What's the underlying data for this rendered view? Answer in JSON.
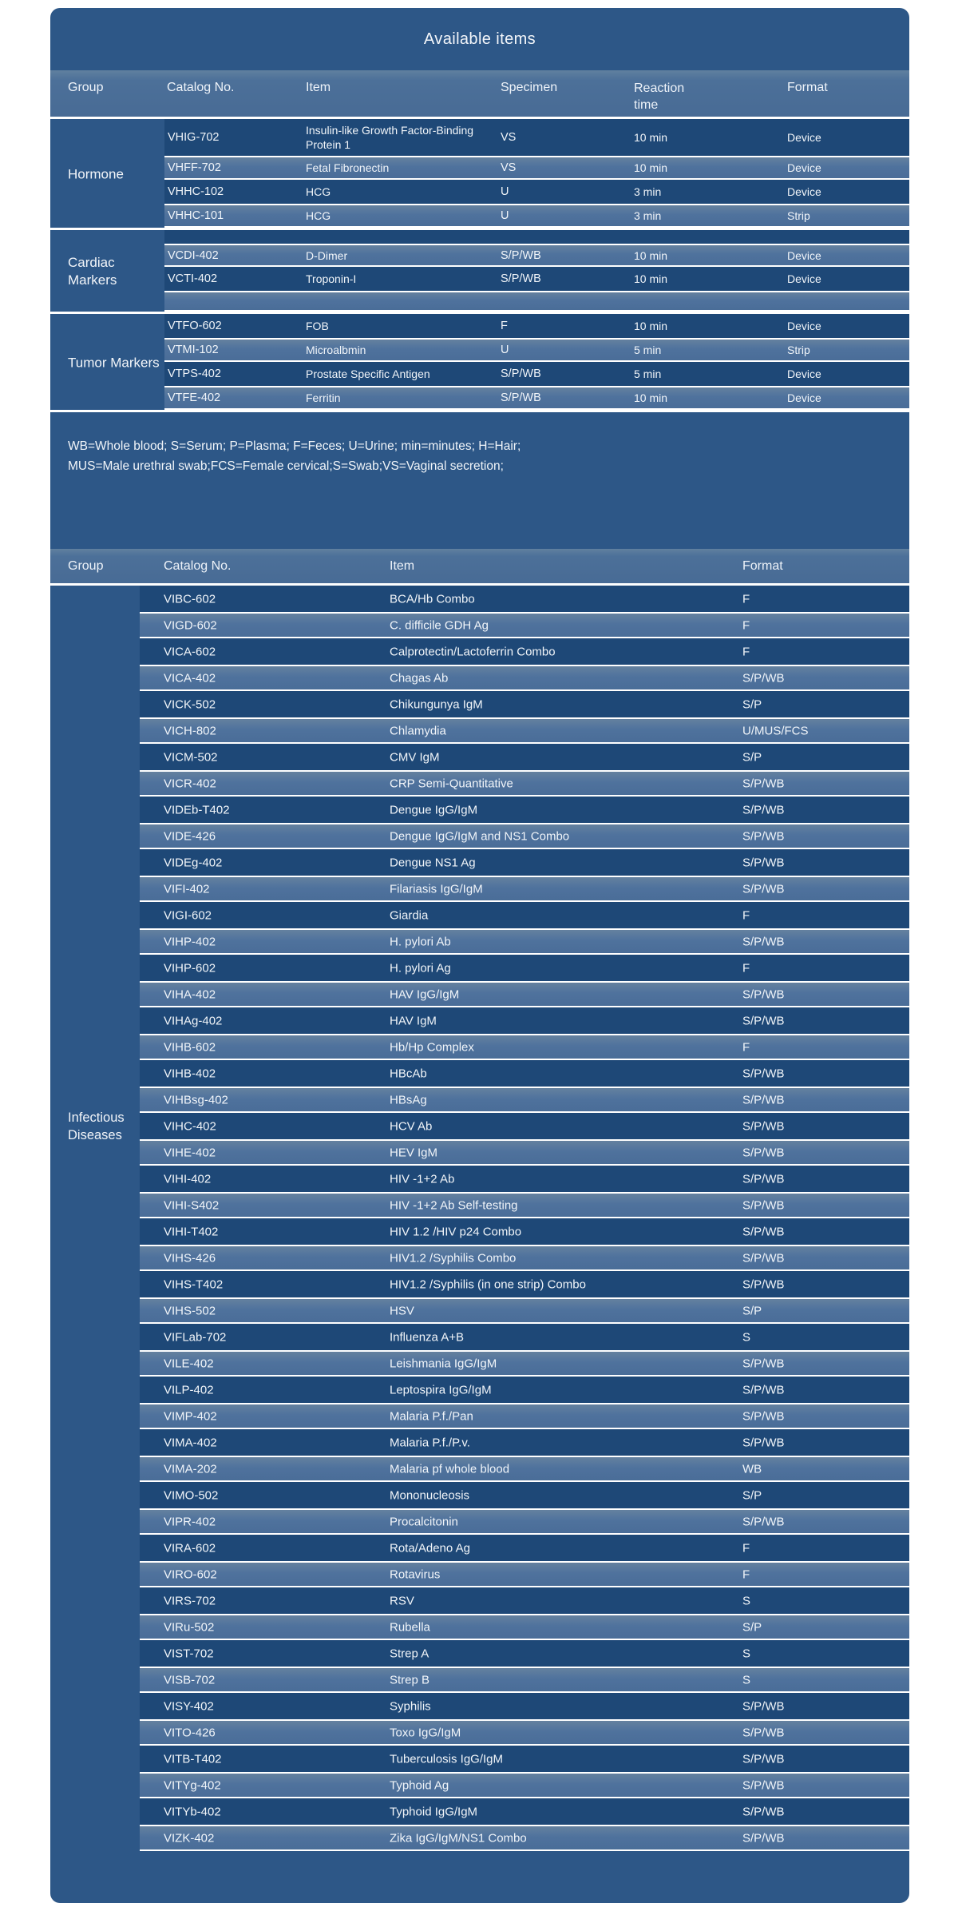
{
  "title": "Available items",
  "colors": {
    "panel_background": "#2d5787",
    "row_dark": "#1e4877",
    "row_light": "#4f729d",
    "header_band": "#4c7099",
    "separator": "#ffffff",
    "text": "#f1f5f9",
    "page_background": "#ffffff"
  },
  "table1": {
    "headers": [
      "Group",
      "Catalog No.",
      "Item",
      "Specimen",
      "Reaction time",
      "Format"
    ],
    "sections": [
      {
        "group": "Hormone",
        "rows": [
          [
            "VHIG-702",
            "Insulin-like Growth Factor-Binding Protein 1",
            "VS",
            "10 min",
            "Device"
          ],
          [
            "VHFF-702",
            "Fetal Fibronectin",
            "VS",
            "10 min",
            "Device"
          ],
          [
            "VHHC-102",
            "HCG",
            "U",
            "3 min",
            "Device"
          ],
          [
            "VHHC-101",
            "HCG",
            "U",
            "3 min",
            "Strip"
          ]
        ]
      },
      {
        "group": "Cardiac Markers",
        "rows": [
          [
            "",
            "",
            "",
            "",
            ""
          ],
          [
            "VCDI-402",
            "D-Dimer",
            "S/P/WB",
            "10 min",
            "Device"
          ],
          [
            "VCTI-402",
            "Troponin-I",
            "S/P/WB",
            "10 min",
            "Device"
          ],
          [
            "",
            "",
            "",
            "",
            ""
          ]
        ]
      },
      {
        "group": "Tumor Markers",
        "rows": [
          [
            "VTFO-602",
            "FOB",
            "F",
            "10 min",
            "Device"
          ],
          [
            "VTMI-102",
            "Microalbmin",
            "U",
            "5 min",
            "Strip"
          ],
          [
            "VTPS-402",
            "Prostate Specific Antigen",
            "S/P/WB",
            "5 min",
            "Device"
          ],
          [
            "VTFE-402",
            "Ferritin",
            "S/P/WB",
            "10 min",
            "Device"
          ]
        ]
      }
    ]
  },
  "legend": {
    "lines": [
      "WB=Whole blood; S=Serum; P=Plasma; F=Feces; U=Urine; min=minutes; H=Hair;",
      "MUS=Male urethral swab;FCS=Female cervical;S=Swab;VS=Vaginal secretion;"
    ]
  },
  "table2": {
    "headers": [
      "Group",
      "Catalog No.",
      "Item",
      "Format"
    ],
    "group": "Infectious Diseases",
    "rows": [
      [
        "VIBC-602",
        "BCA/Hb Combo",
        "F"
      ],
      [
        "VIGD-602",
        "C. difficile GDH Ag",
        "F"
      ],
      [
        "VICA-602",
        "Calprotectin/Lactoferrin Combo",
        "F"
      ],
      [
        "VICA-402",
        "Chagas Ab",
        "S/P/WB"
      ],
      [
        "VICK-502",
        "Chikungunya IgM",
        "S/P"
      ],
      [
        "VICH-802",
        "Chlamydia",
        "U/MUS/FCS"
      ],
      [
        "VICM-502",
        "CMV IgM",
        "S/P"
      ],
      [
        "VICR-402",
        "CRP Semi-Quantitative",
        "S/P/WB"
      ],
      [
        "VIDEb-T402",
        "Dengue IgG/IgM",
        "S/P/WB"
      ],
      [
        "VIDE-426",
        "Dengue IgG/IgM and NS1 Combo",
        "S/P/WB"
      ],
      [
        "VIDEg-402",
        "Dengue NS1 Ag",
        "S/P/WB"
      ],
      [
        "VIFI-402",
        "Filariasis IgG/IgM",
        "S/P/WB"
      ],
      [
        "VIGI-602",
        "Giardia",
        "F"
      ],
      [
        "VIHP-402",
        "H. pylori Ab",
        "S/P/WB"
      ],
      [
        "VIHP-602",
        "H. pylori Ag",
        "F"
      ],
      [
        "VIHA-402",
        "HAV IgG/IgM",
        "S/P/WB"
      ],
      [
        "VIHAg-402",
        "HAV IgM",
        "S/P/WB"
      ],
      [
        "VIHB-602",
        "Hb/Hp Complex",
        "F"
      ],
      [
        "VIHB-402",
        "HBcAb",
        "S/P/WB"
      ],
      [
        "VIHBsg-402",
        "HBsAg",
        "S/P/WB"
      ],
      [
        "VIHC-402",
        "HCV Ab",
        "S/P/WB"
      ],
      [
        "VIHE-402",
        "HEV IgM",
        "S/P/WB"
      ],
      [
        "VIHI-402",
        "HIV -1+2 Ab",
        "S/P/WB"
      ],
      [
        "VIHI-S402",
        "HIV -1+2 Ab Self-testing",
        "S/P/WB"
      ],
      [
        "VIHI-T402",
        "HIV 1.2 /HIV p24 Combo",
        "S/P/WB"
      ],
      [
        "VIHS-426",
        "HIV1.2 /Syphilis Combo",
        "S/P/WB"
      ],
      [
        "VIHS-T402",
        "HIV1.2 /Syphilis (in one strip) Combo",
        "S/P/WB"
      ],
      [
        "VIHS-502",
        "HSV",
        "S/P"
      ],
      [
        "VIFLab-702",
        "Influenza A+B",
        "S"
      ],
      [
        "VILE-402",
        "Leishmania IgG/IgM",
        "S/P/WB"
      ],
      [
        "VILP-402",
        "Leptospira IgG/IgM",
        "S/P/WB"
      ],
      [
        "VIMP-402",
        "Malaria P.f./Pan",
        "S/P/WB"
      ],
      [
        "VIMA-402",
        "Malaria P.f./P.v.",
        "S/P/WB"
      ],
      [
        "VIMA-202",
        "Malaria pf whole blood",
        "WB"
      ],
      [
        "VIMO-502",
        "Mononucleosis",
        "S/P"
      ],
      [
        "VIPR-402",
        "Procalcitonin",
        "S/P/WB"
      ],
      [
        "VIRA-602",
        "Rota/Adeno Ag",
        "F"
      ],
      [
        "VIRO-602",
        "Rotavirus",
        "F"
      ],
      [
        "VIRS-702",
        "RSV",
        "S"
      ],
      [
        "VIRu-502",
        "Rubella",
        "S/P"
      ],
      [
        "VIST-702",
        "Strep A",
        "S"
      ],
      [
        "VISB-702",
        "Strep B",
        "S"
      ],
      [
        "VISY-402",
        "Syphilis",
        "S/P/WB"
      ],
      [
        "VITO-426",
        "Toxo IgG/IgM",
        "S/P/WB"
      ],
      [
        "VITB-T402",
        "Tuberculosis IgG/IgM",
        "S/P/WB"
      ],
      [
        "VITYg-402",
        "Typhoid Ag",
        "S/P/WB"
      ],
      [
        "VITYb-402",
        "Typhoid  IgG/IgM",
        "S/P/WB"
      ],
      [
        "VIZK-402",
        "Zika IgG/IgM/NS1 Combo",
        "S/P/WB"
      ]
    ]
  }
}
